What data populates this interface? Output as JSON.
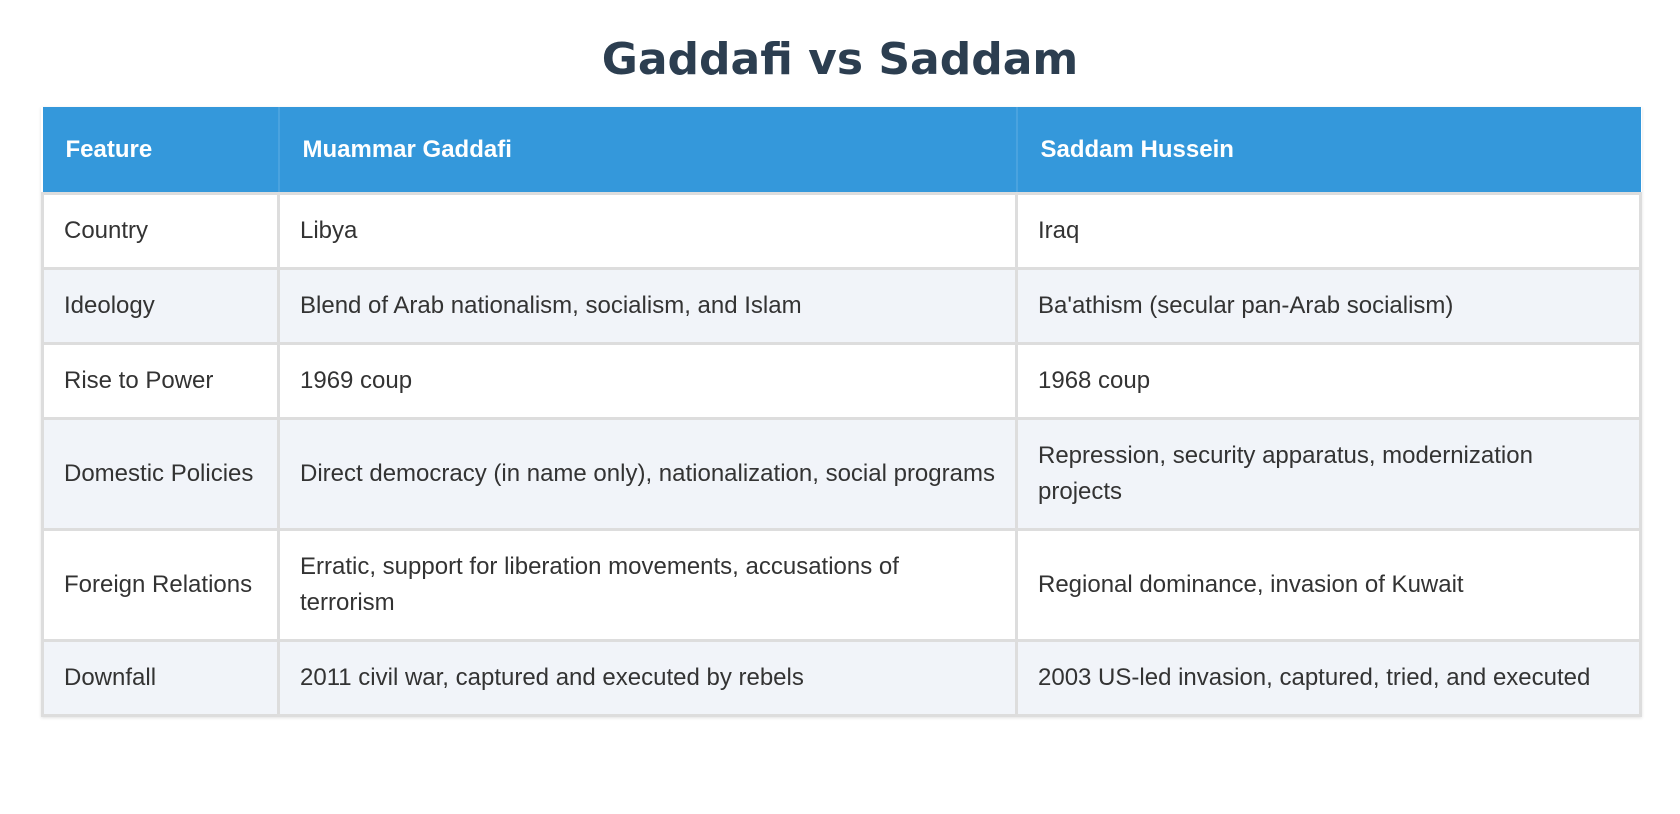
{
  "title": "Gaddafi vs Saddam",
  "colors": {
    "title": "#2c3e50",
    "header_bg": "#3498db",
    "header_text": "#ffffff",
    "row_alt_bg": "#f1f4f9",
    "border": "#dddddd"
  },
  "table": {
    "headers": [
      "Feature",
      "Muammar Gaddafi",
      "Saddam Hussein"
    ],
    "rows": [
      [
        "Country",
        "Libya",
        "Iraq"
      ],
      [
        "Ideology",
        "Blend of Arab nationalism, socialism, and Islam",
        "Ba'athism (secular pan-Arab socialism)"
      ],
      [
        "Rise to Power",
        "1969 coup",
        "1968 coup"
      ],
      [
        "Domestic Policies",
        "Direct democracy (in name only), nationalization, social programs",
        "Repression, security apparatus, modernization projects"
      ],
      [
        "Foreign Relations",
        "Erratic, support for liberation movements, accusations of terrorism",
        "Regional dominance, invasion of Kuwait"
      ],
      [
        "Downfall",
        "2011 civil war, captured and executed by rebels",
        "2003 US-led invasion, captured, tried, and executed"
      ]
    ]
  }
}
